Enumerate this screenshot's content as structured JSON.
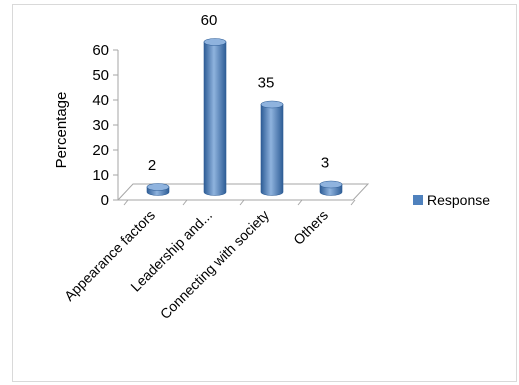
{
  "chart_data": {
    "type": "bar",
    "categories": [
      "Appearance factors",
      "Leadership and...",
      "Connecting with society",
      "Others"
    ],
    "series": [
      {
        "name": "Response",
        "values": [
          2,
          60,
          35,
          3
        ]
      }
    ],
    "data_labels": [
      "2",
      "60",
      "35",
      "3"
    ],
    "ylabel": "Percentage",
    "ylim": [
      0,
      60
    ],
    "yticks": [
      "0",
      "10",
      "20",
      "30",
      "40",
      "50",
      "60"
    ],
    "legend_position": "right",
    "grid": false,
    "style": "3d-cylinder",
    "colors": {
      "bar": "#4f81bd",
      "bar_dark": "#2e5d96",
      "bar_light": "#8fb3de"
    }
  }
}
